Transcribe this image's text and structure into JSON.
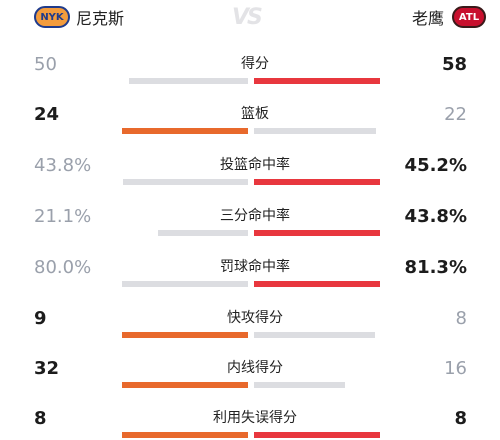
{
  "header": {
    "home": {
      "name": "尼克斯",
      "logo_text": "NYK",
      "logo_icon": "knicks-logo-icon"
    },
    "vs_text": "VS",
    "away": {
      "name": "老鹰",
      "logo_text": "ATL",
      "logo_icon": "hawks-logo-icon"
    }
  },
  "colors": {
    "home_bar": "#e8692c",
    "away_bar": "#e8373e",
    "trail_bar": "#dcdde1",
    "trail_text": "#9aa0ab"
  },
  "stats": [
    {
      "label": "得分",
      "home": "50",
      "away": "58",
      "home_share": 0.463,
      "away_share": 0.537,
      "leader": "away"
    },
    {
      "label": "篮板",
      "home": "24",
      "away": "22",
      "home_share": 0.522,
      "away_share": 0.478,
      "leader": "home"
    },
    {
      "label": "投篮命中率",
      "home": "43.8%",
      "away": "45.2%",
      "home_share": 0.492,
      "away_share": 0.508,
      "leader": "away"
    },
    {
      "label": "三分命中率",
      "home": "21.1%",
      "away": "43.8%",
      "home_share": 0.325,
      "away_share": 0.675,
      "leader": "away"
    },
    {
      "label": "罚球命中率",
      "home": "80.0%",
      "away": "81.3%",
      "home_share": 0.496,
      "away_share": 0.504,
      "leader": "away"
    },
    {
      "label": "快攻得分",
      "home": "9",
      "away": "8",
      "home_share": 0.529,
      "away_share": 0.471,
      "leader": "home"
    },
    {
      "label": "内线得分",
      "home": "32",
      "away": "16",
      "home_share": 0.667,
      "away_share": 0.333,
      "leader": "home"
    },
    {
      "label": "利用失误得分",
      "home": "8",
      "away": "8",
      "home_share": 0.5,
      "away_share": 0.5,
      "leader": "both"
    }
  ]
}
